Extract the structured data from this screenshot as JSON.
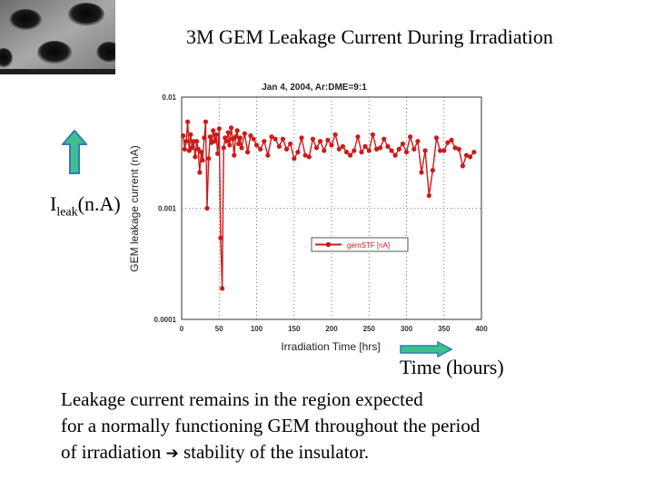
{
  "slide": {
    "title": "3M GEM Leakage Current During Irradiation",
    "ileak_main": "I",
    "ileak_sub": "leak",
    "ileak_unit": "(n.A)",
    "time_label": "Time (hours)",
    "caption_lines": [
      "Leakage current remains in the region expected",
      "for a normally functioning GEM throughout the period",
      "of irradiation",
      "stability of the insulator."
    ],
    "arrow_color": "#3cc08c"
  },
  "chart_data": {
    "type": "line",
    "title": "Jan 4, 2004, Ar:DME=9:1",
    "xlabel": "Irradiation Time [hrs]",
    "ylabel": "GEM leakage current (nA)",
    "xlim": [
      0,
      400
    ],
    "ylim": [
      0.0001,
      0.01
    ],
    "yscale": "log",
    "x_ticks": [
      "0",
      "50",
      "100",
      "150",
      "200",
      "250",
      "300",
      "350",
      "400"
    ],
    "y_ticks": [
      "0.01",
      "0.001",
      "0.0001"
    ],
    "legend": {
      "label": "gemSTF [nA]",
      "placement": "lower-right"
    },
    "color": "#cc1a1a",
    "series": [
      {
        "name": "gemSTF [nA]",
        "x": [
          2,
          4,
          6,
          8,
          10,
          12,
          14,
          16,
          18,
          20,
          22,
          24,
          26,
          28,
          30,
          32,
          34,
          36,
          38,
          40,
          42,
          44,
          46,
          48,
          50,
          52,
          54,
          56,
          58,
          60,
          62,
          64,
          66,
          68,
          70,
          72,
          74,
          76,
          78,
          80,
          84,
          88,
          92,
          96,
          100,
          105,
          110,
          115,
          120,
          125,
          130,
          135,
          140,
          145,
          150,
          155,
          160,
          165,
          170,
          175,
          180,
          185,
          190,
          195,
          200,
          205,
          210,
          215,
          220,
          225,
          230,
          235,
          240,
          245,
          250,
          255,
          260,
          265,
          270,
          275,
          280,
          285,
          290,
          295,
          300,
          305,
          310,
          315,
          320,
          325,
          330,
          335,
          340,
          345,
          350,
          355,
          360,
          365,
          370,
          375,
          380,
          385,
          390
        ],
        "y": [
          0.0045,
          0.0034,
          0.004,
          0.006,
          0.0033,
          0.0046,
          0.0035,
          0.004,
          0.0029,
          0.004,
          0.0034,
          0.0021,
          0.0032,
          0.0027,
          0.0043,
          0.006,
          0.001,
          0.0028,
          0.0044,
          0.0039,
          0.005,
          0.004,
          0.0046,
          0.0031,
          0.0052,
          0.00054,
          0.00019,
          0.0035,
          0.0043,
          0.004,
          0.0048,
          0.0037,
          0.0053,
          0.0042,
          0.003,
          0.0044,
          0.005,
          0.0038,
          0.0043,
          0.0035,
          0.0047,
          0.0032,
          0.0045,
          0.0042,
          0.0037,
          0.0034,
          0.004,
          0.003,
          0.0044,
          0.0042,
          0.0036,
          0.0042,
          0.0034,
          0.0038,
          0.0028,
          0.0032,
          0.0043,
          0.003,
          0.0029,
          0.0042,
          0.0035,
          0.004,
          0.0033,
          0.0041,
          0.0037,
          0.0046,
          0.0034,
          0.0036,
          0.0032,
          0.003,
          0.0033,
          0.0044,
          0.0032,
          0.0036,
          0.0033,
          0.0046,
          0.0034,
          0.0035,
          0.0042,
          0.0036,
          0.0033,
          0.003,
          0.0034,
          0.0038,
          0.0032,
          0.0044,
          0.0034,
          0.004,
          0.0021,
          0.0033,
          0.0013,
          0.0022,
          0.0043,
          0.0033,
          0.0033,
          0.0039,
          0.0041,
          0.0035,
          0.0034,
          0.0024,
          0.003,
          0.0029,
          0.0032
        ]
      }
    ]
  }
}
